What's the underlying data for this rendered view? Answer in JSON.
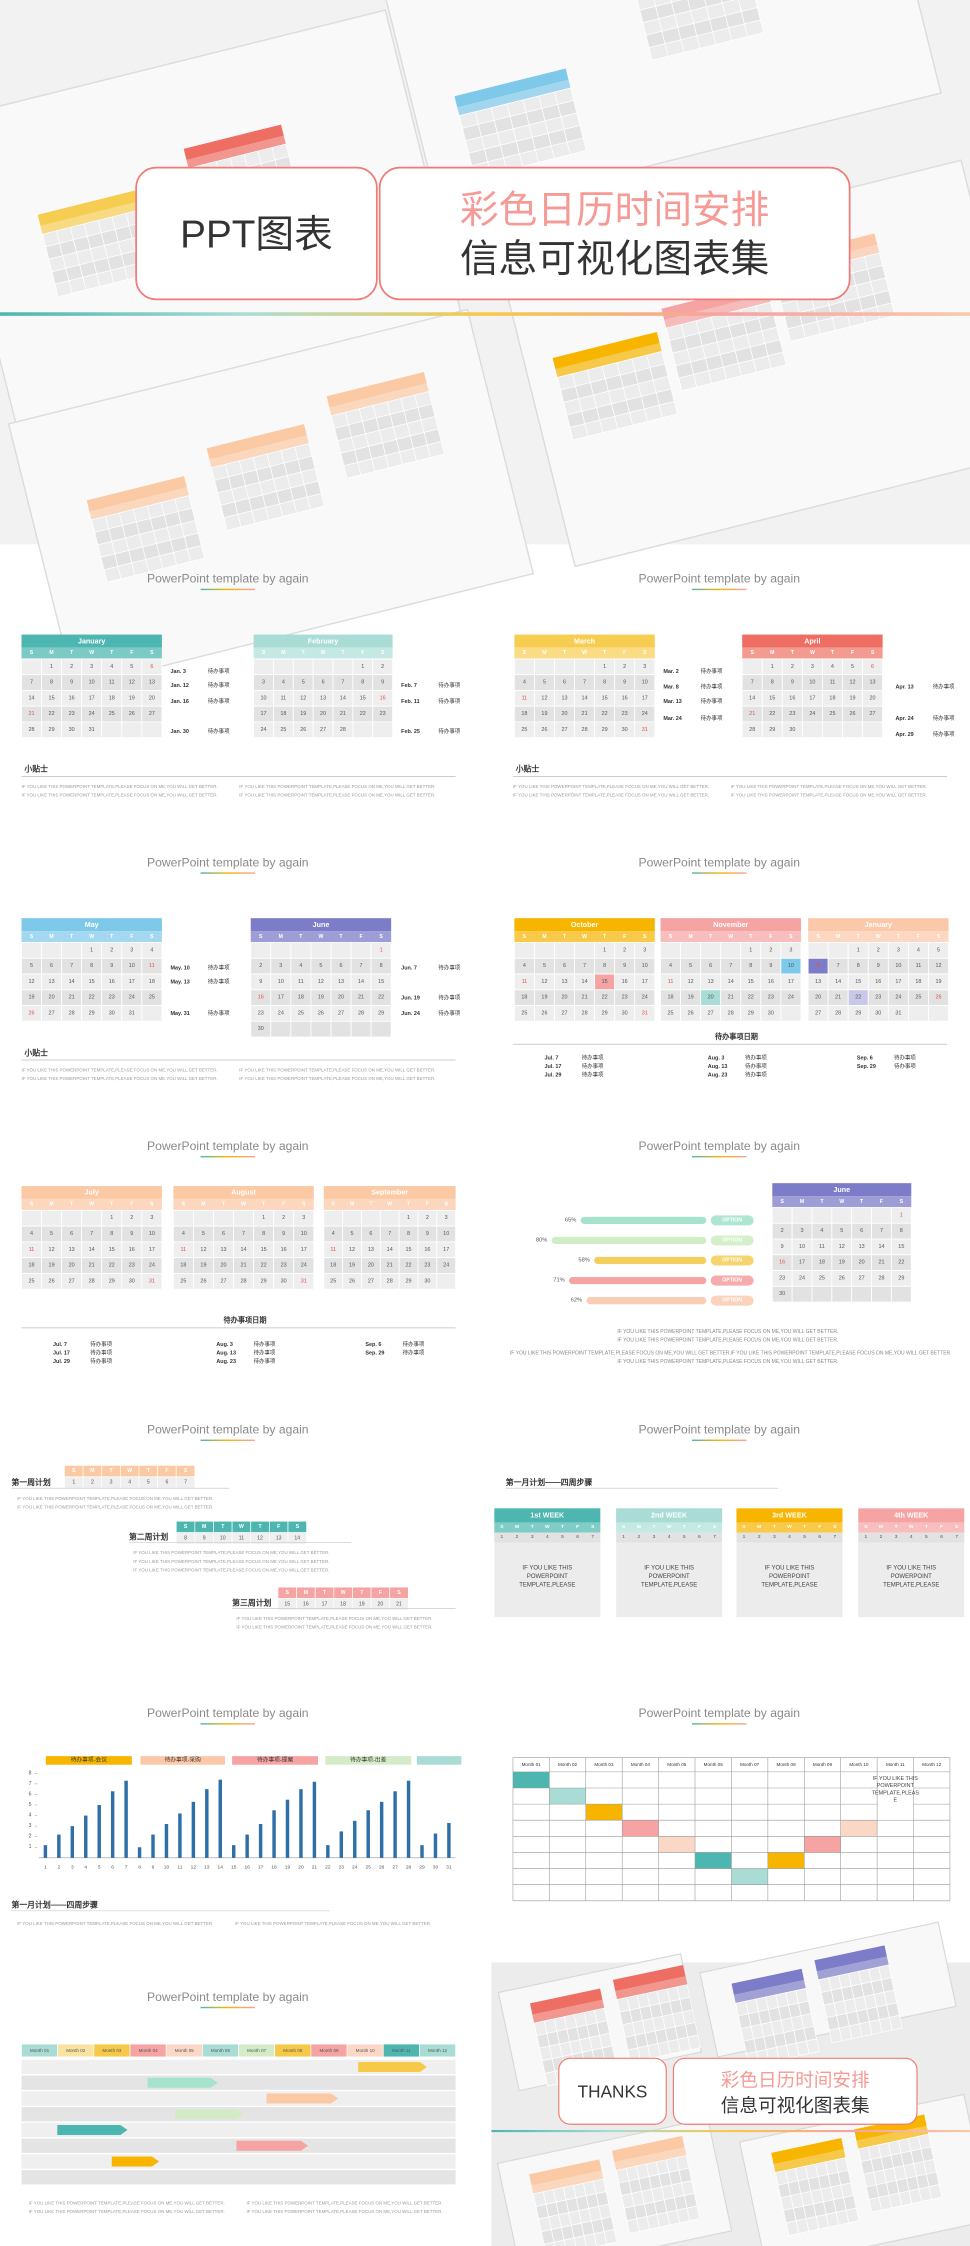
{
  "hero": {
    "title": "PPT图表",
    "subtitle_1": "彩色日历时间安排",
    "subtitle_2": "信息可视化图表集"
  },
  "slide_header": "PowerPoint template by again",
  "weekdays": [
    "S",
    "M",
    "T",
    "W",
    "T",
    "F",
    "S"
  ],
  "day_numbers": [
    1,
    2,
    3,
    4,
    5,
    6,
    7,
    8,
    9,
    10,
    11,
    12,
    13,
    14,
    15,
    16,
    17,
    18,
    19,
    20,
    21,
    22,
    23,
    24,
    25,
    26,
    27,
    28,
    29,
    30,
    31
  ],
  "todo": "待办事项",
  "tip": "小贴士",
  "body_text": "IF YOU LIKE THIS POWERPOINT TEMPLATE,PLEASE FOCUS ON ME,YOU WILL GET BETTER.",
  "months": [
    "Month 01",
    "Month 02",
    "Month 03",
    "Month 04",
    "Month 05",
    "Month 06",
    "Month 07",
    "Month 08",
    "Month 09",
    "Month 10",
    "Month 11",
    "Month 12"
  ],
  "jan_feb": {
    "calendars": [
      {
        "month": "January",
        "events": [
          "Jan. 3",
          "Jan. 12",
          "Jan. 16",
          "Jan. 30"
        ]
      },
      {
        "month": "February",
        "events": [
          "Feb. 7",
          "Feb. 11",
          "Feb. 25"
        ]
      }
    ]
  },
  "mar_apr": {
    "calendars": [
      {
        "month": "March",
        "events": [
          "Mar. 2",
          "Mar. 8",
          "Mar. 13",
          "Mar. 24"
        ]
      },
      {
        "month": "April",
        "events": [
          "Apr. 13",
          "Apr. 24",
          "Apr. 29"
        ]
      }
    ]
  },
  "may_jun": {
    "calendars": [
      {
        "month": "May",
        "events": [
          "May. 10",
          "May. 13",
          "May. 31"
        ]
      },
      {
        "month": "June",
        "events": [
          "Jun. 7",
          "Jun. 19",
          "Jun. 24"
        ]
      }
    ]
  },
  "oct_nov_jan": {
    "calendars": [
      {
        "month": "October"
      },
      {
        "month": "November"
      },
      {
        "month": "January"
      }
    ],
    "dates_title": "待办事项日期",
    "events": [
      [
        "Jul. 7",
        "Jul. 17",
        "Jul. 29"
      ],
      [
        "Aug. 3",
        "Aug. 13",
        "Aug. 23"
      ],
      [
        "Sep. 6",
        "Sep. 29"
      ]
    ]
  },
  "jul_aug_sep": {
    "calendars": [
      {
        "month": "July"
      },
      {
        "month": "August"
      },
      {
        "month": "September"
      }
    ],
    "dates_title": "待办事项日期",
    "events": [
      [
        "Jul. 7",
        "Jul. 17",
        "Jul. 29"
      ],
      [
        "Aug. 3",
        "Aug. 13",
        "Aug. 23"
      ],
      [
        "Sep. 6",
        "Sep. 29"
      ]
    ]
  },
  "options": {
    "bars": {
      "values": [
        65,
        80,
        58,
        71,
        62
      ],
      "value_labels": [
        "65%",
        "80%",
        "58%",
        "71%",
        "62%"
      ],
      "colors": [
        "#a6e3cc",
        "#cfeec4",
        "#f5cf5e",
        "#f5a3a3",
        "#fbcdb5"
      ]
    },
    "option": "OPTION",
    "calendar": {
      "month": "June"
    }
  },
  "week_plans": {
    "plans": [
      "第一周计划",
      "第二周计划",
      "第三周计划"
    ]
  },
  "month_plan": {
    "title": "第一月计划——四周步骤",
    "weeks": [
      "1st WEEK",
      "2nd WEEK",
      "3rd WEEK",
      "4th WEEK"
    ],
    "card_text": [
      "IF YOU LIKE THIS",
      "POWERPOINT",
      "TEMPLATE,PLEASE"
    ]
  },
  "bar_chart": {
    "title": "第一月计划——四周步骤",
    "chart_data": {
      "type": "bar",
      "color": "#2e6fa8",
      "legend": [
        {
          "name": "待办事项-会议",
          "color": "#f7b500"
        },
        {
          "name": "待办事项-采购",
          "color": "#fbc8a9"
        },
        {
          "name": "待办事项-提案",
          "color": "#f5a3a3"
        },
        {
          "name": "待办事项-出差",
          "color": "#d3ecc7"
        }
      ],
      "categories": [
        1,
        2,
        3,
        4,
        5,
        6,
        7,
        8,
        9,
        10,
        11,
        12,
        13,
        14,
        15,
        16,
        17,
        18,
        19,
        20,
        21,
        22,
        23,
        24,
        25,
        26,
        27,
        28,
        29,
        30,
        31
      ],
      "values": [
        1.2,
        2.2,
        3,
        4,
        5,
        6.3,
        7.3,
        1,
        2.2,
        3.2,
        4.2,
        5.3,
        6.5,
        7.4,
        1.2,
        2.2,
        3.2,
        4.5,
        5.5,
        6.5,
        7.2,
        1.2,
        2.5,
        3.5,
        4.5,
        5.3,
        6.3,
        7.3,
        1.2,
        2.3,
        3.3
      ],
      "ylim": [
        0,
        8
      ],
      "yticks": [
        1,
        2,
        3,
        4,
        5,
        6,
        7,
        8
      ]
    }
  },
  "table": {
    "cell_text": [
      "IF YOU LIKE THIS",
      "POWERPOINT",
      "TEMPLATE,PLEAS",
      "E"
    ]
  },
  "thanks": {
    "text": "THANKS"
  }
}
